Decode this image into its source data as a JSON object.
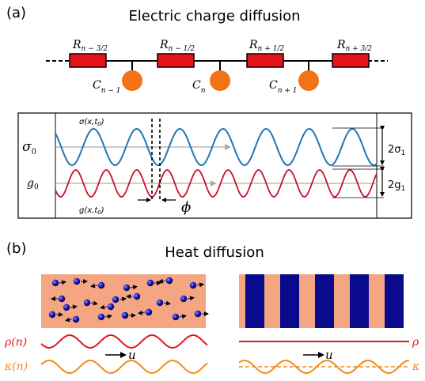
{
  "panel_a": {
    "label": "(a)",
    "title": "Electric charge diffusion",
    "resistors": [
      {
        "base": "R",
        "sub": "n − 3/2"
      },
      {
        "base": "R",
        "sub": "n − 1/2"
      },
      {
        "base": "R",
        "sub": "n + 1/2"
      },
      {
        "base": "R",
        "sub": "n + 3/2"
      }
    ],
    "capacitors": [
      {
        "base": "C",
        "sub": "n − 1"
      },
      {
        "base": "C",
        "sub": "n"
      },
      {
        "base": "C",
        "sub": "n + 1"
      }
    ],
    "wave_box": {
      "sigma_func": "σ(x,t",
      "sigma_func_sub": "0",
      "sigma_func_end": ")",
      "sigma0_base": "σ",
      "sigma0_sub": "0",
      "g_func": "g(x,t",
      "g_func_sub": "0",
      "g_func_end": ")",
      "g0_base": "g",
      "g0_sub": "0",
      "phase": "ϕ",
      "sigma_amp": "2σ",
      "sigma_amp_sub": "1",
      "g_amp": "2g",
      "g_amp_sub": "1"
    }
  },
  "panel_b": {
    "label": "(b)",
    "title": "Heat diffusion",
    "rho_label": "ρ(n)",
    "kappa_label": "κ(n)",
    "velocity_label": "u",
    "rho_label_right": "ρ",
    "kappa_label_right": "κ"
  },
  "colors": {
    "resistor": "#e8141c",
    "capacitor": "#f47216",
    "sigma_wave": "#1f77b4",
    "g_wave": "#c8102e",
    "salmon": "#f4a582",
    "navy": "#0a0a8c",
    "rho": "#e0191e",
    "kappa": "#f28a1a"
  }
}
